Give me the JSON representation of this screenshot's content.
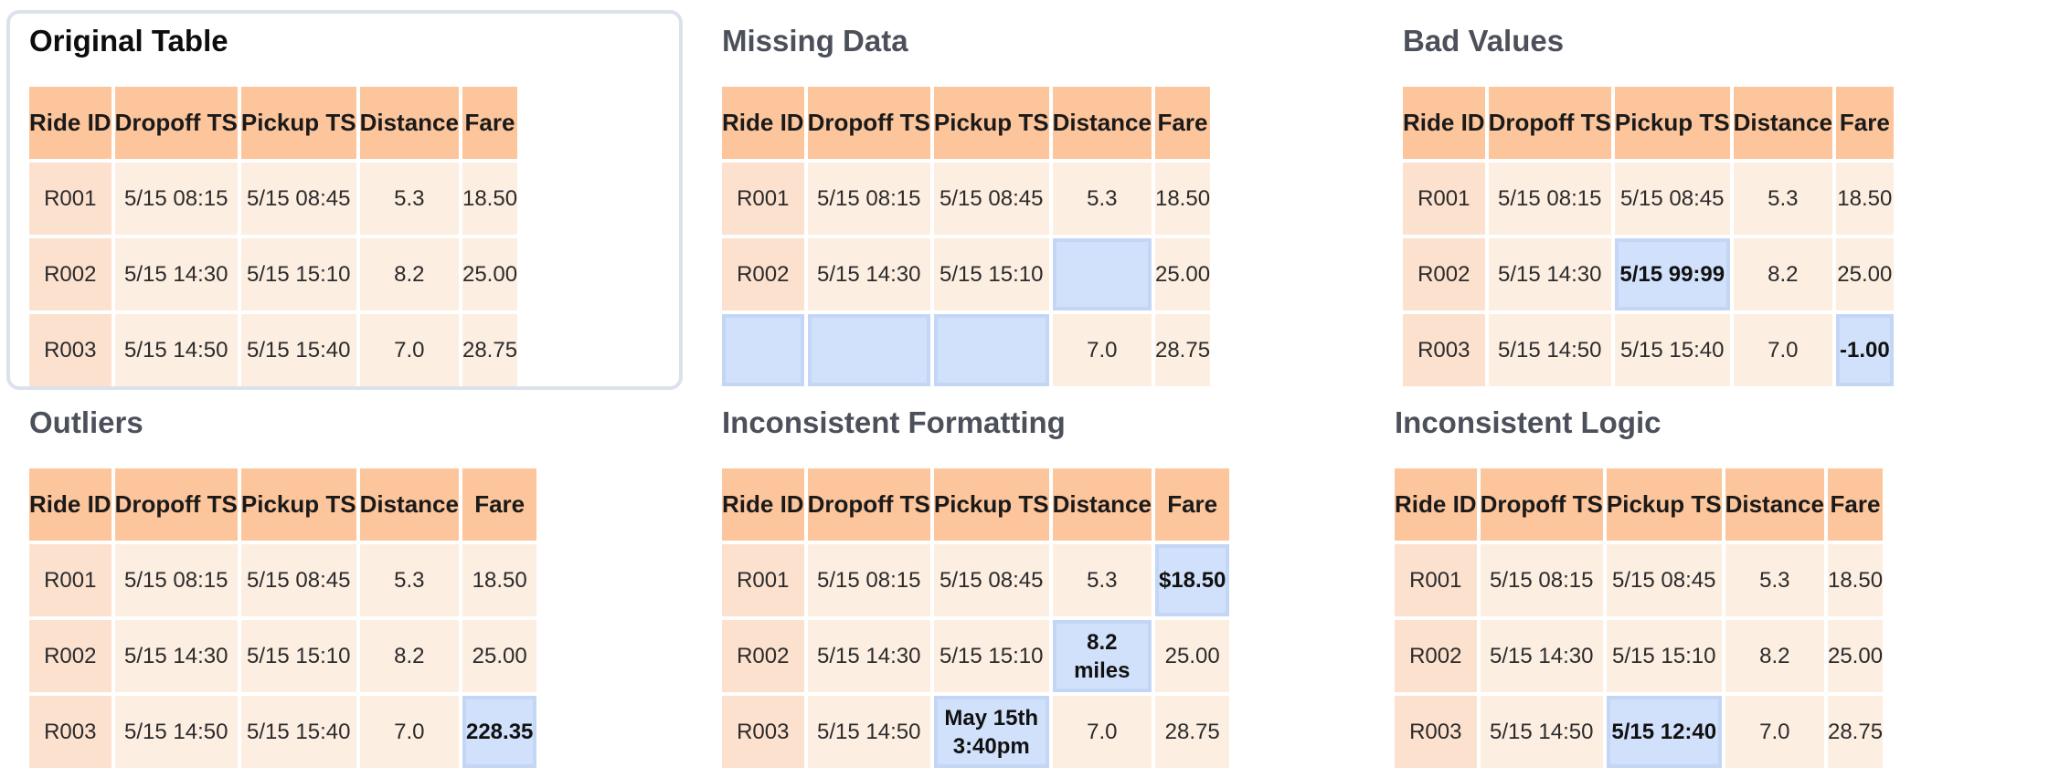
{
  "columns": [
    "Ride ID",
    "Dropoff TS",
    "Pickup TS",
    "Distance",
    "Fare"
  ],
  "panels": [
    {
      "title": "Original Table",
      "rows": [
        [
          "R001",
          "5/15 08:15",
          "5/15 08:45",
          "5.3",
          "18.50"
        ],
        [
          "R002",
          "5/15 14:30",
          "5/15 15:10",
          "8.2",
          "25.00"
        ],
        [
          "R003",
          "5/15 14:50",
          "5/15 15:40",
          "7.0",
          "28.75"
        ]
      ],
      "highlights": []
    },
    {
      "title": "Missing Data",
      "rows": [
        [
          "R001",
          "5/15 08:15",
          "5/15 08:45",
          "5.3",
          "18.50"
        ],
        [
          "R002",
          "5/15 14:30",
          "5/15 15:10",
          "",
          "25.00"
        ],
        [
          "",
          "",
          "",
          "7.0",
          "28.75"
        ]
      ],
      "highlights": [
        [
          1,
          3
        ],
        [
          2,
          0
        ],
        [
          2,
          1
        ],
        [
          2,
          2
        ]
      ]
    },
    {
      "title": "Bad Values",
      "rows": [
        [
          "R001",
          "5/15 08:15",
          "5/15 08:45",
          "5.3",
          "18.50"
        ],
        [
          "R002",
          "5/15 14:30",
          "5/15 99:99",
          "8.2",
          "25.00"
        ],
        [
          "R003",
          "5/15 14:50",
          "5/15 15:40",
          "7.0",
          "-1.00"
        ]
      ],
      "highlights": [
        [
          1,
          2
        ],
        [
          2,
          4
        ]
      ]
    },
    {
      "title": "Outliers",
      "rows": [
        [
          "R001",
          "5/15 08:15",
          "5/15 08:45",
          "5.3",
          "18.50"
        ],
        [
          "R002",
          "5/15 14:30",
          "5/15 15:10",
          "8.2",
          "25.00"
        ],
        [
          "R003",
          "5/15 14:50",
          "5/15 15:40",
          "7.0",
          "228.35"
        ]
      ],
      "highlights": [
        [
          2,
          4
        ]
      ]
    },
    {
      "title": "Inconsistent Formatting",
      "rows": [
        [
          "R001",
          "5/15 08:15",
          "5/15 08:45",
          "5.3",
          "$18.50"
        ],
        [
          "R002",
          "5/15 14:30",
          "5/15 15:10",
          "8.2 miles",
          "25.00"
        ],
        [
          "R003",
          "5/15 14:50",
          "May 15th 3:40pm",
          "7.0",
          "28.75"
        ]
      ],
      "highlights": [
        [
          0,
          4
        ],
        [
          1,
          3
        ],
        [
          2,
          2
        ]
      ]
    },
    {
      "title": "Inconsistent Logic",
      "rows": [
        [
          "R001",
          "5/15 08:15",
          "5/15 08:45",
          "5.3",
          "18.50"
        ],
        [
          "R002",
          "5/15 14:30",
          "5/15 15:10",
          "8.2",
          "25.00"
        ],
        [
          "R003",
          "5/15 14:50",
          "5/15 12:40",
          "7.0",
          "28.75"
        ]
      ],
      "highlights": [
        [
          2,
          2
        ]
      ]
    }
  ]
}
